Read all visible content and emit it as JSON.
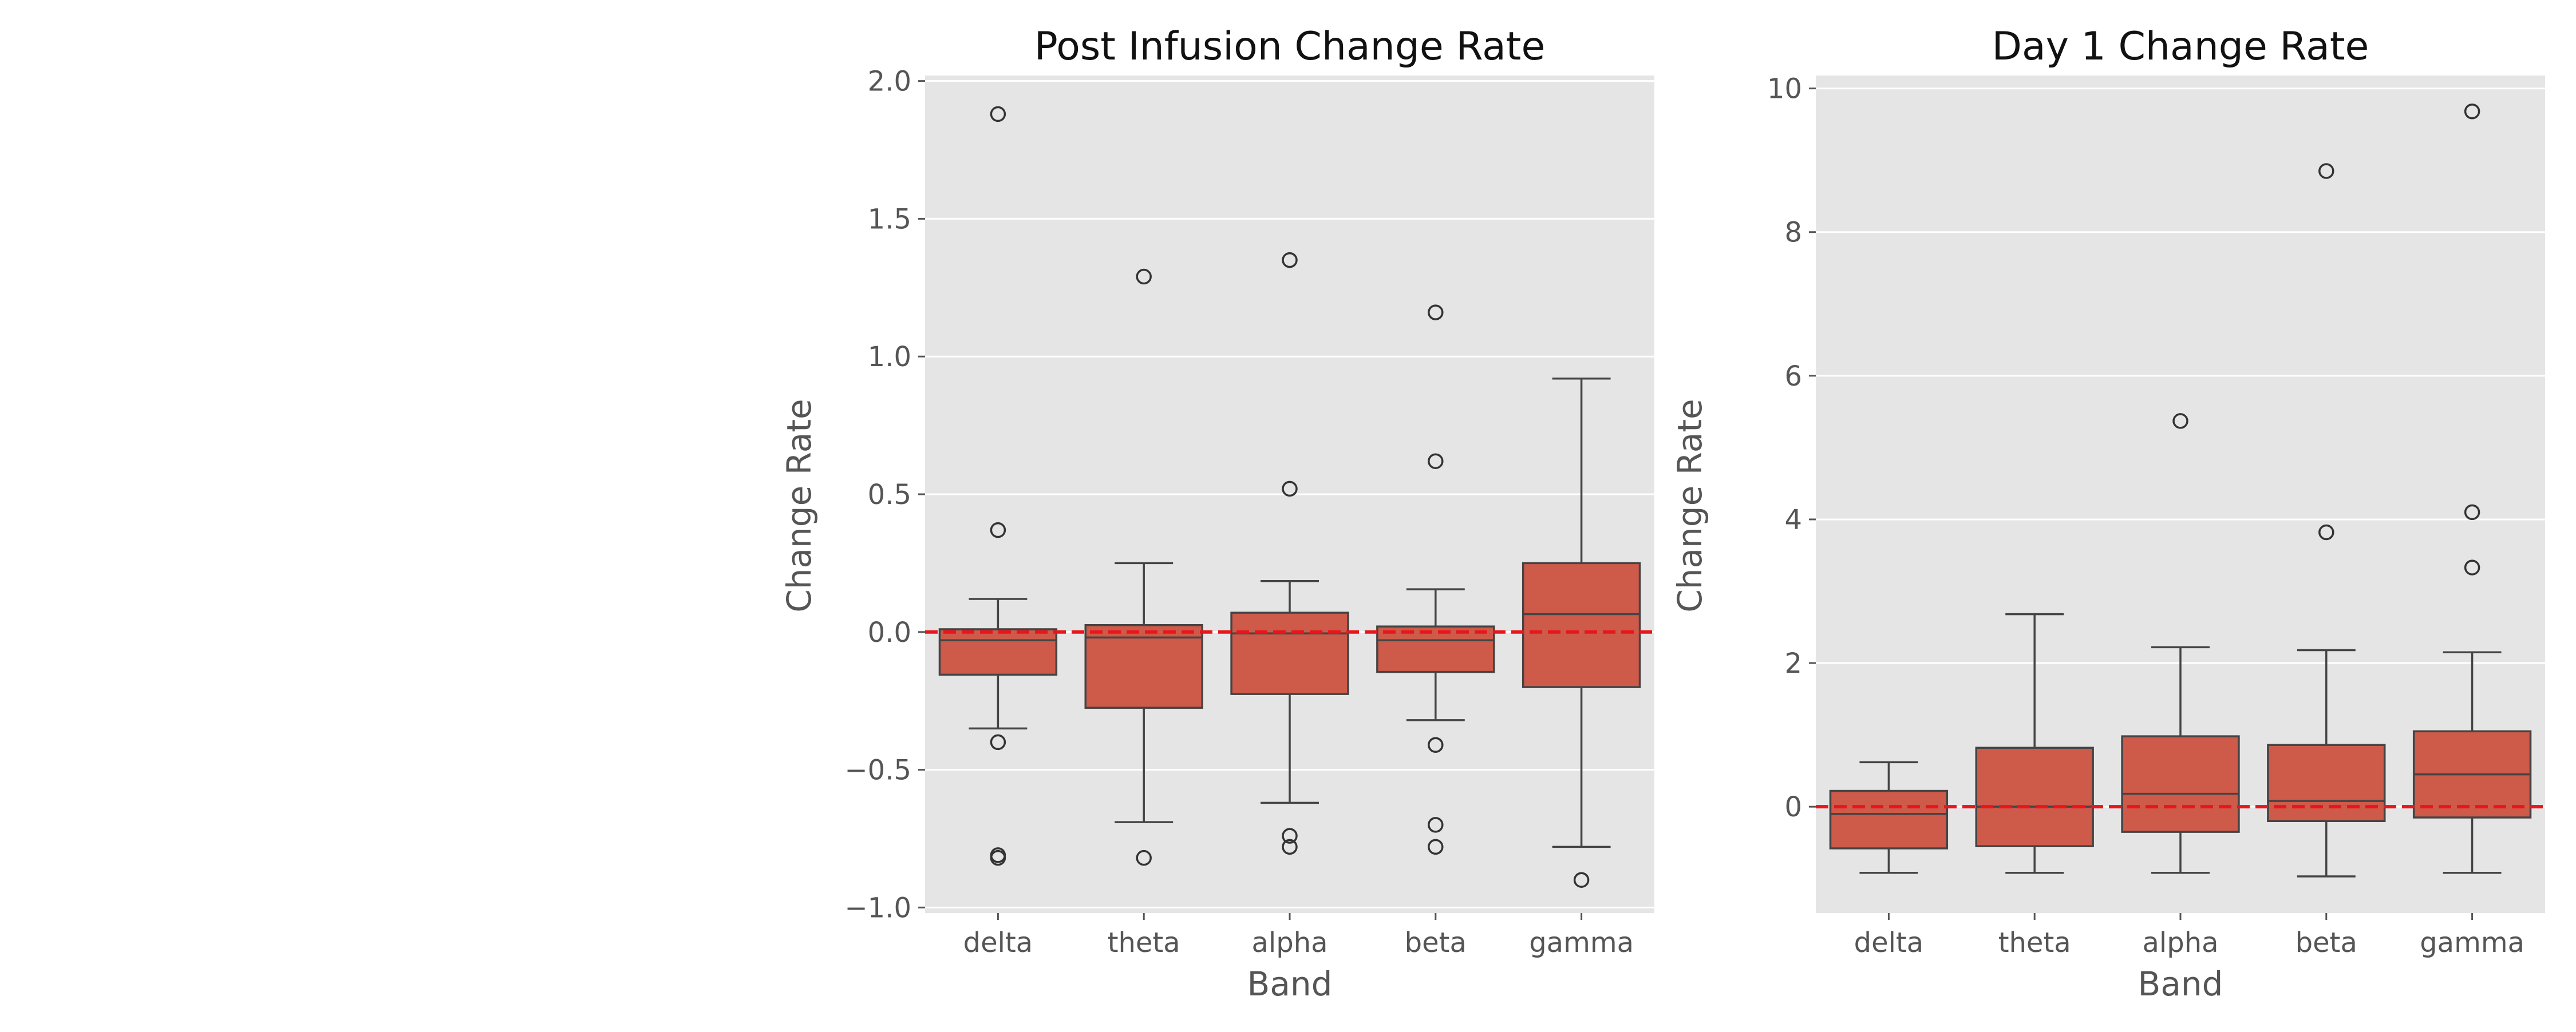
{
  "chart_data": [
    {
      "type": "box",
      "title": "Post Infusion Change Rate",
      "xlabel": "Band",
      "ylabel": "Change Rate",
      "categories": [
        "delta",
        "theta",
        "alpha",
        "beta",
        "gamma"
      ],
      "ylim": [
        -1.02,
        2.02
      ],
      "yticks": [
        -1.0,
        -0.5,
        0.0,
        0.5,
        1.0,
        1.5,
        2.0
      ],
      "ytick_labels": [
        "−1.0",
        "−0.5",
        "0.0",
        "0.5",
        "1.0",
        "1.5",
        "2.0"
      ],
      "reference_line": {
        "y": 0,
        "style": "dashed",
        "color": "#e8161b"
      },
      "grid": true,
      "boxes": [
        {
          "category": "delta",
          "whisker_low": -0.35,
          "q1": -0.155,
          "median": -0.03,
          "q3": 0.01,
          "whisker_high": 0.12,
          "outliers": [
            1.88,
            0.37,
            -0.4,
            -0.81,
            -0.82
          ]
        },
        {
          "category": "theta",
          "whisker_low": -0.69,
          "q1": -0.275,
          "median": -0.02,
          "q3": 0.025,
          "whisker_high": 0.25,
          "outliers": [
            1.29,
            -0.82
          ]
        },
        {
          "category": "alpha",
          "whisker_low": -0.62,
          "q1": -0.225,
          "median": -0.005,
          "q3": 0.07,
          "whisker_high": 0.185,
          "outliers": [
            1.35,
            0.52,
            -0.74,
            -0.78
          ]
        },
        {
          "category": "beta",
          "whisker_low": -0.32,
          "q1": -0.145,
          "median": -0.03,
          "q3": 0.02,
          "whisker_high": 0.155,
          "outliers": [
            1.16,
            0.62,
            -0.41,
            -0.7,
            -0.78
          ]
        },
        {
          "category": "gamma",
          "whisker_low": -0.78,
          "q1": -0.2,
          "median": 0.065,
          "q3": 0.25,
          "whisker_high": 0.92,
          "outliers": [
            -0.9
          ]
        }
      ]
    },
    {
      "type": "box",
      "title": "Day 1 Change Rate",
      "xlabel": "Band",
      "ylabel": "Change Rate",
      "categories": [
        "delta",
        "theta",
        "alpha",
        "beta",
        "gamma"
      ],
      "ylim": [
        -1.48,
        10.18
      ],
      "yticks": [
        0,
        2,
        4,
        6,
        8,
        10
      ],
      "ytick_labels": [
        "0",
        "2",
        "4",
        "6",
        "8",
        "10"
      ],
      "reference_line": {
        "y": 0,
        "style": "dashed",
        "color": "#e8161b"
      },
      "grid": true,
      "boxes": [
        {
          "category": "delta",
          "whisker_low": -0.92,
          "q1": -0.58,
          "median": -0.1,
          "q3": 0.22,
          "whisker_high": 0.62,
          "outliers": []
        },
        {
          "category": "theta",
          "whisker_low": -0.92,
          "q1": -0.55,
          "median": 0.0,
          "q3": 0.82,
          "whisker_high": 2.68,
          "outliers": []
        },
        {
          "category": "alpha",
          "whisker_low": -0.92,
          "q1": -0.35,
          "median": 0.18,
          "q3": 0.98,
          "whisker_high": 2.22,
          "outliers": [
            5.37
          ]
        },
        {
          "category": "beta",
          "whisker_low": -0.97,
          "q1": -0.2,
          "median": 0.08,
          "q3": 0.86,
          "whisker_high": 2.18,
          "outliers": [
            8.85,
            3.82
          ]
        },
        {
          "category": "gamma",
          "whisker_low": -0.92,
          "q1": -0.15,
          "median": 0.45,
          "q3": 1.05,
          "whisker_high": 2.15,
          "outliers": [
            9.68,
            4.1,
            3.33
          ]
        }
      ]
    }
  ],
  "colors": {
    "panel_background": "#e5e5e5",
    "box_fill": "#ce5a4a",
    "box_edge": "#444444",
    "reference_line": "#e8161b",
    "text": "#555555",
    "title": "#111111"
  }
}
